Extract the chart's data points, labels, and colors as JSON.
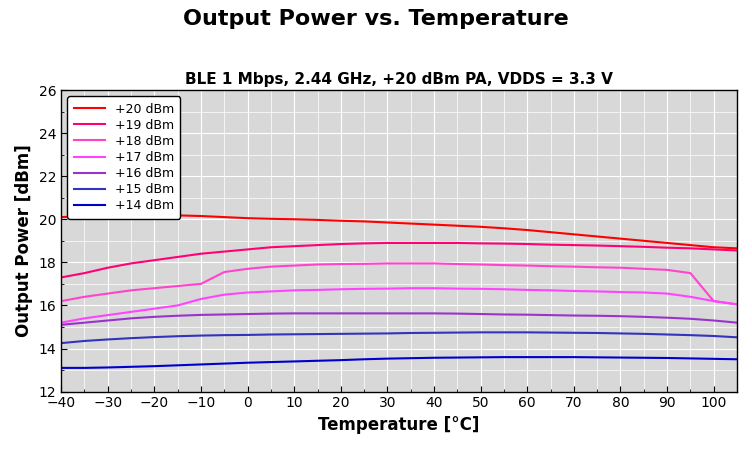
{
  "title": "Output Power vs. Temperature",
  "subtitle": "BLE 1 Mbps, 2.44 GHz, +20 dBm PA, VDDS = 3.3 V",
  "xlabel": "Temperature [°C]",
  "ylabel": "Output Power [dBm]",
  "xlim": [
    -40,
    105
  ],
  "ylim": [
    12,
    26
  ],
  "xticks": [
    -40,
    -30,
    -20,
    -10,
    0,
    10,
    20,
    30,
    40,
    50,
    60,
    70,
    80,
    90,
    100
  ],
  "yticks": [
    12,
    14,
    16,
    18,
    20,
    22,
    24,
    26
  ],
  "series": [
    {
      "label": "+20 dBm",
      "color": "#ff0000",
      "x": [
        -40,
        -35,
        -30,
        -25,
        -20,
        -15,
        -10,
        -5,
        0,
        5,
        10,
        15,
        20,
        25,
        30,
        35,
        40,
        45,
        50,
        55,
        60,
        65,
        70,
        75,
        80,
        85,
        90,
        95,
        100,
        105
      ],
      "y": [
        20.1,
        20.15,
        20.18,
        20.2,
        20.2,
        20.18,
        20.15,
        20.1,
        20.05,
        20.02,
        20.0,
        19.97,
        19.93,
        19.9,
        19.85,
        19.8,
        19.75,
        19.7,
        19.65,
        19.58,
        19.5,
        19.4,
        19.3,
        19.2,
        19.1,
        19.0,
        18.9,
        18.8,
        18.7,
        18.65
      ]
    },
    {
      "label": "+19 dBm",
      "color": "#ff0077",
      "x": [
        -40,
        -35,
        -30,
        -25,
        -20,
        -15,
        -10,
        -5,
        0,
        5,
        10,
        15,
        20,
        25,
        30,
        35,
        40,
        45,
        50,
        55,
        60,
        65,
        70,
        75,
        80,
        85,
        90,
        95,
        100,
        105
      ],
      "y": [
        17.3,
        17.5,
        17.75,
        17.95,
        18.1,
        18.25,
        18.4,
        18.5,
        18.6,
        18.7,
        18.75,
        18.8,
        18.85,
        18.88,
        18.9,
        18.9,
        18.9,
        18.9,
        18.88,
        18.87,
        18.85,
        18.82,
        18.8,
        18.78,
        18.75,
        18.72,
        18.68,
        18.65,
        18.6,
        18.55
      ]
    },
    {
      "label": "+18 dBm",
      "color": "#ff44cc",
      "x": [
        -40,
        -35,
        -30,
        -25,
        -20,
        -15,
        -10,
        -5,
        0,
        5,
        10,
        15,
        20,
        25,
        30,
        35,
        40,
        45,
        50,
        55,
        60,
        65,
        70,
        75,
        80,
        85,
        90,
        95,
        100,
        105
      ],
      "y": [
        16.2,
        16.4,
        16.55,
        16.7,
        16.8,
        16.9,
        17.0,
        17.55,
        17.7,
        17.8,
        17.85,
        17.9,
        17.92,
        17.93,
        17.95,
        17.95,
        17.95,
        17.92,
        17.9,
        17.87,
        17.85,
        17.82,
        17.8,
        17.77,
        17.75,
        17.7,
        17.65,
        17.5,
        16.2,
        16.05
      ]
    },
    {
      "label": "+17 dBm",
      "color": "#ff44ff",
      "x": [
        -40,
        -35,
        -30,
        -25,
        -20,
        -15,
        -10,
        -5,
        0,
        5,
        10,
        15,
        20,
        25,
        30,
        35,
        40,
        45,
        50,
        55,
        60,
        65,
        70,
        75,
        80,
        85,
        90,
        95,
        100,
        105
      ],
      "y": [
        15.2,
        15.4,
        15.55,
        15.7,
        15.85,
        16.0,
        16.3,
        16.5,
        16.6,
        16.65,
        16.7,
        16.72,
        16.75,
        16.77,
        16.78,
        16.8,
        16.8,
        16.78,
        16.77,
        16.75,
        16.72,
        16.7,
        16.67,
        16.65,
        16.62,
        16.6,
        16.55,
        16.4,
        16.2,
        16.05
      ]
    },
    {
      "label": "+16 dBm",
      "color": "#9933cc",
      "x": [
        -40,
        -35,
        -30,
        -25,
        -20,
        -15,
        -10,
        -5,
        0,
        5,
        10,
        15,
        20,
        25,
        30,
        35,
        40,
        45,
        50,
        55,
        60,
        65,
        70,
        75,
        80,
        85,
        90,
        95,
        100,
        105
      ],
      "y": [
        15.1,
        15.2,
        15.3,
        15.4,
        15.47,
        15.52,
        15.56,
        15.58,
        15.6,
        15.62,
        15.63,
        15.63,
        15.63,
        15.63,
        15.63,
        15.63,
        15.63,
        15.62,
        15.6,
        15.58,
        15.57,
        15.55,
        15.53,
        15.52,
        15.5,
        15.47,
        15.43,
        15.38,
        15.3,
        15.2
      ]
    },
    {
      "label": "+15 dBm",
      "color": "#3333bb",
      "x": [
        -40,
        -35,
        -30,
        -25,
        -20,
        -15,
        -10,
        -5,
        0,
        5,
        10,
        15,
        20,
        25,
        30,
        35,
        40,
        45,
        50,
        55,
        60,
        65,
        70,
        75,
        80,
        85,
        90,
        95,
        100,
        105
      ],
      "y": [
        14.25,
        14.35,
        14.42,
        14.48,
        14.53,
        14.57,
        14.6,
        14.62,
        14.63,
        14.65,
        14.66,
        14.67,
        14.68,
        14.69,
        14.7,
        14.72,
        14.73,
        14.74,
        14.75,
        14.75,
        14.75,
        14.74,
        14.73,
        14.72,
        14.7,
        14.68,
        14.65,
        14.62,
        14.58,
        14.52
      ]
    },
    {
      "label": "+14 dBm",
      "color": "#0000cc",
      "x": [
        -40,
        -35,
        -30,
        -25,
        -20,
        -15,
        -10,
        -5,
        0,
        5,
        10,
        15,
        20,
        25,
        30,
        35,
        40,
        45,
        50,
        55,
        60,
        65,
        70,
        75,
        80,
        85,
        90,
        95,
        100,
        105
      ],
      "y": [
        13.1,
        13.1,
        13.12,
        13.15,
        13.18,
        13.22,
        13.26,
        13.3,
        13.34,
        13.37,
        13.4,
        13.43,
        13.46,
        13.5,
        13.53,
        13.55,
        13.57,
        13.58,
        13.59,
        13.6,
        13.6,
        13.6,
        13.6,
        13.59,
        13.58,
        13.57,
        13.56,
        13.54,
        13.52,
        13.5
      ]
    }
  ],
  "background_color": "#d8d8d8",
  "grid_color": "#ffffff",
  "plot_bg": "#d8d8d8",
  "fig_bg": "#ffffff",
  "title_fontsize": 16,
  "subtitle_fontsize": 11,
  "axis_label_fontsize": 12,
  "tick_fontsize": 10,
  "legend_fontsize": 9,
  "line_width": 1.5
}
